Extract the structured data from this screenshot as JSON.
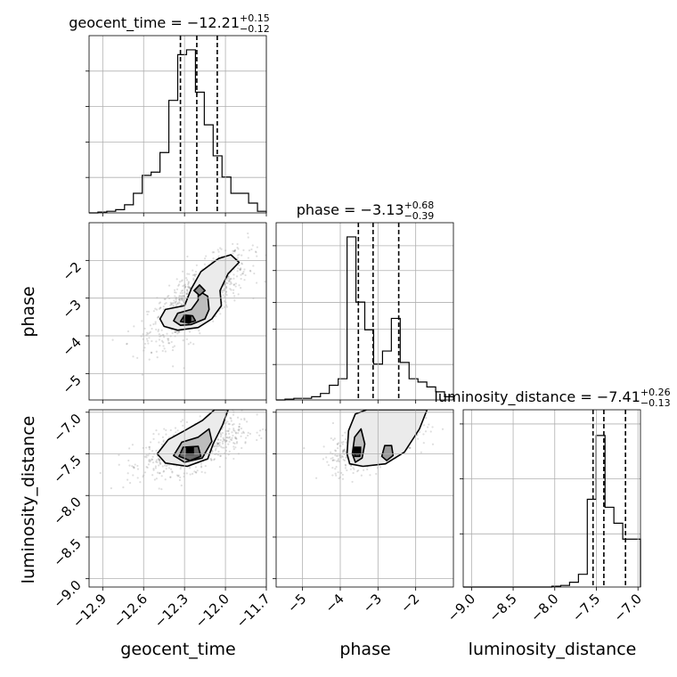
{
  "chart_data": {
    "type": "corner",
    "parameters": [
      "geocent_time",
      "phase",
      "luminosity_distance"
    ],
    "titles": [
      {
        "param": "geocent_time",
        "prefix": "geocent_time = ",
        "median": "−12.21",
        "plus": "+0.15",
        "minus": "−0.12"
      },
      {
        "param": "phase",
        "prefix": "phase = ",
        "median": "−3.13",
        "plus": "+0.68",
        "minus": "−0.39"
      },
      {
        "param": "luminosity_distance",
        "prefix": "luminosity_distance = ",
        "median": "−7.41",
        "plus": "+0.26",
        "minus": "−0.13"
      }
    ],
    "ranges": {
      "geocent_time": [
        -13.0,
        -11.7
      ],
      "phase": [
        -5.7,
        -1.0
      ],
      "luminosity_distance": [
        -9.1,
        -6.97
      ]
    },
    "ticks": {
      "geocent_time": {
        "values": [
          -12.9,
          -12.6,
          -12.3,
          -12.0,
          -11.7
        ],
        "labels": [
          "−12.9",
          "−12.6",
          "−12.3",
          "−12.0",
          "−11.7"
        ]
      },
      "phase": {
        "values": [
          -5,
          -4,
          -3,
          -2
        ],
        "labels": [
          "−5",
          "−4",
          "−3",
          "−2"
        ]
      },
      "luminosity_distance": {
        "values": [
          -9.0,
          -8.5,
          -8.0,
          -7.5,
          -7.0
        ],
        "labels": [
          "−9.0",
          "−8.5",
          "−8.0",
          "−7.5",
          "−7.0"
        ]
      }
    },
    "quantiles": {
      "geocent_time": [
        -12.33,
        -12.21,
        -12.06
      ],
      "phase": [
        -3.52,
        -3.13,
        -2.45
      ],
      "luminosity_distance": [
        -7.54,
        -7.41,
        -7.15
      ]
    },
    "histograms": {
      "geocent_time": {
        "edges": [
          -13.0,
          -12.935,
          -12.87,
          -12.805,
          -12.74,
          -12.675,
          -12.61,
          -12.545,
          -12.48,
          -12.415,
          -12.35,
          -12.285,
          -12.22,
          -12.155,
          -12.09,
          -12.025,
          -11.96,
          -11.895,
          -11.83,
          -11.765,
          -11.7
        ],
        "counts": [
          0.0,
          0.005,
          0.01,
          0.02,
          0.05,
          0.12,
          0.23,
          0.25,
          0.37,
          0.69,
          0.97,
          1.0,
          0.74,
          0.54,
          0.35,
          0.22,
          0.12,
          0.12,
          0.06,
          0.01
        ]
      },
      "phase": {
        "edges": [
          -5.7,
          -5.465,
          -5.23,
          -4.995,
          -4.76,
          -4.525,
          -4.29,
          -4.055,
          -3.82,
          -3.585,
          -3.35,
          -3.115,
          -2.88,
          -2.645,
          -2.41,
          -2.175,
          -1.94,
          -1.705,
          -1.47,
          -1.235,
          -1.0
        ],
        "counts": [
          0.0,
          0.005,
          0.01,
          0.01,
          0.02,
          0.04,
          0.09,
          0.13,
          1.0,
          0.6,
          0.43,
          0.22,
          0.3,
          0.5,
          0.23,
          0.13,
          0.11,
          0.08,
          0.05,
          0.02
        ]
      },
      "luminosity_distance": {
        "edges": [
          -9.1,
          -8.9935,
          -8.887,
          -8.7805,
          -8.674,
          -8.5675,
          -8.461,
          -8.3545,
          -8.248,
          -8.1415,
          -8.035,
          -7.9285,
          -7.822,
          -7.7155,
          -7.609,
          -7.5025,
          -7.396,
          -7.2895,
          -7.183,
          -7.0765,
          -6.97
        ],
        "counts": [
          0.0,
          0.0,
          0.0,
          0.0,
          0.0,
          0.0,
          0.0,
          0.0,
          0.0,
          0.0,
          0.005,
          0.01,
          0.03,
          0.08,
          0.55,
          0.95,
          0.5,
          0.4,
          0.3,
          0.3
        ]
      }
    },
    "contours_2d": [
      {
        "x": "geocent_time",
        "y": "phase",
        "peak": [
          -12.28,
          -3.55
        ],
        "levels": [
          {
            "fill": "#ebebeb",
            "path": [
              [
                -12.48,
                -3.55
              ],
              [
                -12.44,
                -3.3
              ],
              [
                -12.3,
                -3.2
              ],
              [
                -12.25,
                -2.75
              ],
              [
                -12.18,
                -2.3
              ],
              [
                -12.05,
                -1.95
              ],
              [
                -11.96,
                -1.85
              ],
              [
                -11.9,
                -2.05
              ],
              [
                -11.98,
                -2.35
              ],
              [
                -12.04,
                -2.8
              ],
              [
                -12.03,
                -3.2
              ],
              [
                -12.1,
                -3.55
              ],
              [
                -12.2,
                -3.78
              ],
              [
                -12.35,
                -3.85
              ],
              [
                -12.45,
                -3.75
              ]
            ]
          },
          {
            "fill": "#bdbdbd",
            "path": [
              [
                -12.38,
                -3.6
              ],
              [
                -12.35,
                -3.4
              ],
              [
                -12.25,
                -3.3
              ],
              [
                -12.2,
                -3.05
              ],
              [
                -12.2,
                -2.8
              ],
              [
                -12.13,
                -2.95
              ],
              [
                -12.12,
                -3.3
              ],
              [
                -12.15,
                -3.55
              ],
              [
                -12.25,
                -3.7
              ],
              [
                -12.33,
                -3.72
              ]
            ]
          },
          {
            "fill": "#7a7a7a",
            "path": [
              [
                -12.33,
                -3.62
              ],
              [
                -12.3,
                -3.45
              ],
              [
                -12.24,
                -3.47
              ],
              [
                -12.22,
                -3.6
              ],
              [
                -12.27,
                -3.66
              ]
            ]
          }
        ],
        "extra": [
          {
            "fill": "#8a8a8a",
            "path": [
              [
                -12.23,
                -2.8
              ],
              [
                -12.19,
                -2.65
              ],
              [
                -12.15,
                -2.8
              ],
              [
                -12.19,
                -2.93
              ]
            ]
          }
        ]
      },
      {
        "x": "geocent_time",
        "y": "luminosity_distance",
        "peak": [
          -12.26,
          -7.46
        ],
        "levels": [
          {
            "fill": "#ebebeb",
            "path": [
              [
                -12.5,
                -7.5
              ],
              [
                -12.42,
                -7.33
              ],
              [
                -12.3,
                -7.22
              ],
              [
                -12.17,
                -7.1
              ],
              [
                -12.08,
                -6.97
              ],
              [
                -11.98,
                -6.97
              ],
              [
                -12.02,
                -7.15
              ],
              [
                -12.09,
                -7.38
              ],
              [
                -12.13,
                -7.56
              ],
              [
                -12.28,
                -7.65
              ],
              [
                -12.44,
                -7.61
              ]
            ]
          },
          {
            "fill": "#bdbdbd",
            "path": [
              [
                -12.38,
                -7.52
              ],
              [
                -12.32,
                -7.36
              ],
              [
                -12.2,
                -7.3
              ],
              [
                -12.12,
                -7.2
              ],
              [
                -12.1,
                -7.35
              ],
              [
                -12.17,
                -7.55
              ],
              [
                -12.3,
                -7.6
              ]
            ]
          },
          {
            "fill": "#6a6a6a",
            "path": [
              [
                -12.34,
                -7.53
              ],
              [
                -12.31,
                -7.42
              ],
              [
                -12.2,
                -7.41
              ],
              [
                -12.18,
                -7.53
              ],
              [
                -12.26,
                -7.58
              ]
            ]
          }
        ],
        "extra": []
      },
      {
        "x": "phase",
        "y": "luminosity_distance",
        "peak": [
          -3.55,
          -7.46
        ],
        "levels": [
          {
            "fill": "#ebebeb",
            "path": [
              [
                -3.82,
                -7.5
              ],
              [
                -3.78,
                -7.22
              ],
              [
                -3.6,
                -7.02
              ],
              [
                -3.3,
                -6.97
              ],
              [
                -1.7,
                -6.97
              ],
              [
                -1.9,
                -7.2
              ],
              [
                -2.3,
                -7.48
              ],
              [
                -2.8,
                -7.62
              ],
              [
                -3.4,
                -7.65
              ],
              [
                -3.75,
                -7.62
              ]
            ]
          },
          {
            "fill": "#bdbdbd",
            "path": [
              [
                -3.68,
                -7.5
              ],
              [
                -3.62,
                -7.3
              ],
              [
                -3.45,
                -7.2
              ],
              [
                -3.35,
                -7.38
              ],
              [
                -3.42,
                -7.55
              ],
              [
                -3.6,
                -7.6
              ]
            ]
          },
          {
            "fill": "#9a9a9a",
            "path": [
              [
                -2.9,
                -7.53
              ],
              [
                -2.82,
                -7.4
              ],
              [
                -2.64,
                -7.4
              ],
              [
                -2.6,
                -7.52
              ],
              [
                -2.77,
                -7.58
              ]
            ]
          },
          {
            "fill": "#4a4a4a",
            "path": [
              [
                -3.62,
                -7.53
              ],
              [
                -3.6,
                -7.43
              ],
              [
                -3.5,
                -7.43
              ],
              [
                -3.48,
                -7.53
              ]
            ]
          }
        ],
        "extra": []
      }
    ],
    "scatter_params": [
      {
        "x": "geocent_time",
        "y": "phase",
        "cx": -12.2,
        "cy": -3.0,
        "sx": 0.18,
        "sy": 0.6,
        "rho": 0.75,
        "n": 900
      },
      {
        "x": "geocent_time",
        "y": "luminosity_distance",
        "cx": -12.24,
        "cy": -7.42,
        "sx": 0.18,
        "sy": 0.16,
        "rho": 0.55,
        "n": 800
      },
      {
        "x": "phase",
        "y": "luminosity_distance",
        "cx": -3.1,
        "cy": -7.38,
        "sx": 0.55,
        "sy": 0.15,
        "rho": 0.6,
        "n": 800
      }
    ]
  }
}
